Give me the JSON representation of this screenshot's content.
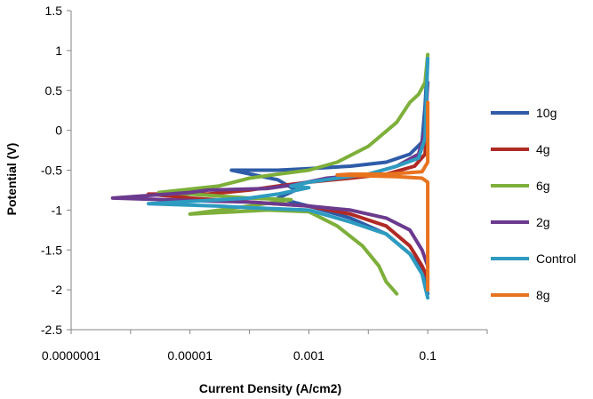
{
  "chart_data": {
    "type": "line",
    "title": "",
    "xlabel": "Current Density (A/cm2)",
    "ylabel": "Potential (V)",
    "x_scale": "log",
    "xlim": [
      1e-07,
      1
    ],
    "ylim": [
      -2.5,
      1.5
    ],
    "x_ticks": [
      {
        "value": 1e-07,
        "label": "0.0000001"
      },
      {
        "value": 1e-05,
        "label": "0.00001"
      },
      {
        "value": 0.001,
        "label": "0.001"
      },
      {
        "value": 0.1,
        "label": "0.1"
      }
    ],
    "y_ticks": [
      {
        "value": 1.5,
        "label": "1.5"
      },
      {
        "value": 1,
        "label": "1"
      },
      {
        "value": 0.5,
        "label": "0.5"
      },
      {
        "value": 0,
        "label": "0"
      },
      {
        "value": -0.5,
        "label": "-0.5"
      },
      {
        "value": -1,
        "label": "-1"
      },
      {
        "value": -1.5,
        "label": "-1.5"
      },
      {
        "value": -2,
        "label": "-2"
      },
      {
        "value": -2.5,
        "label": "-2.5"
      }
    ],
    "grid": false,
    "legend_position": "right",
    "series": [
      {
        "name": "10g",
        "color": "#2E5CA8",
        "points": [
          [
            0.1,
            0.9
          ],
          [
            0.09,
            0.3
          ],
          [
            0.08,
            -0.15
          ],
          [
            0.05,
            -0.3
          ],
          [
            0.02,
            -0.4
          ],
          [
            0.005,
            -0.45
          ],
          [
            0.001,
            -0.48
          ],
          [
            0.0003,
            -0.5
          ],
          [
            0.0001,
            -0.5
          ],
          [
            5e-05,
            -0.5
          ],
          [
            0.0003,
            -0.62
          ],
          [
            0.0006,
            -0.75
          ],
          [
            0.0003,
            -0.85
          ],
          [
            0.001,
            -0.95
          ],
          [
            0.005,
            -1.1
          ],
          [
            0.02,
            -1.3
          ],
          [
            0.05,
            -1.55
          ],
          [
            0.08,
            -1.75
          ],
          [
            0.1,
            -2.05
          ]
        ]
      },
      {
        "name": "4g",
        "color": "#B02A25",
        "points": [
          [
            0.1,
            0.2
          ],
          [
            0.09,
            -0.3
          ],
          [
            0.06,
            -0.45
          ],
          [
            0.02,
            -0.55
          ],
          [
            0.005,
            -0.6
          ],
          [
            0.001,
            -0.65
          ],
          [
            0.0003,
            -0.7
          ],
          [
            0.0001,
            -0.75
          ],
          [
            2e-05,
            -0.8
          ],
          [
            2e-06,
            -0.8
          ],
          [
            1e-05,
            -0.85
          ],
          [
            0.0001,
            -0.9
          ],
          [
            0.001,
            -0.95
          ],
          [
            0.005,
            -1.05
          ],
          [
            0.02,
            -1.2
          ],
          [
            0.05,
            -1.45
          ],
          [
            0.08,
            -1.7
          ],
          [
            0.1,
            -1.85
          ]
        ]
      },
      {
        "name": "6g",
        "color": "#7DAF3A",
        "points": [
          [
            0.1,
            0.95
          ],
          [
            0.09,
            0.6
          ],
          [
            0.07,
            0.45
          ],
          [
            0.05,
            0.35
          ],
          [
            0.03,
            0.1
          ],
          [
            0.01,
            -0.2
          ],
          [
            0.003,
            -0.4
          ],
          [
            0.001,
            -0.5
          ],
          [
            0.0003,
            -0.55
          ],
          [
            0.0001,
            -0.6
          ],
          [
            3e-05,
            -0.7
          ],
          [
            3e-06,
            -0.78
          ],
          [
            1e-05,
            -0.8
          ],
          [
            0.0001,
            -0.85
          ],
          [
            0.0005,
            -0.87
          ],
          [
            0.0001,
            -0.95
          ],
          [
            1e-05,
            -1.05
          ],
          [
            0.0002,
            -1.0
          ],
          [
            0.001,
            -1.02
          ],
          [
            0.003,
            -1.2
          ],
          [
            0.008,
            -1.45
          ],
          [
            0.015,
            -1.7
          ],
          [
            0.02,
            -1.9
          ],
          [
            0.03,
            -2.05
          ]
        ]
      },
      {
        "name": "2g",
        "color": "#6B3A8E",
        "points": [
          [
            0.1,
            0.6
          ],
          [
            0.09,
            0.0
          ],
          [
            0.07,
            -0.3
          ],
          [
            0.03,
            -0.45
          ],
          [
            0.01,
            -0.55
          ],
          [
            0.002,
            -0.6
          ],
          [
            0.0006,
            -0.68
          ],
          [
            0.0002,
            -0.73
          ],
          [
            2e-05,
            -0.75
          ],
          [
            1e-05,
            -0.78
          ],
          [
            5e-07,
            -0.85
          ],
          [
            1e-05,
            -0.88
          ],
          [
            0.0001,
            -0.9
          ],
          [
            0.001,
            -0.95
          ],
          [
            0.005,
            -1.0
          ],
          [
            0.02,
            -1.1
          ],
          [
            0.05,
            -1.25
          ],
          [
            0.08,
            -1.5
          ],
          [
            0.1,
            -1.7
          ]
        ]
      },
      {
        "name": "Control",
        "color": "#2E9BC0",
        "points": [
          [
            0.1,
            0.9
          ],
          [
            0.09,
            -0.1
          ],
          [
            0.07,
            -0.35
          ],
          [
            0.03,
            -0.45
          ],
          [
            0.01,
            -0.55
          ],
          [
            0.003,
            -0.6
          ],
          [
            0.001,
            -0.65
          ],
          [
            0.0005,
            -0.7
          ],
          [
            0.001,
            -0.72
          ],
          [
            0.0003,
            -0.8
          ],
          [
            0.0001,
            -0.85
          ],
          [
            2e-06,
            -0.92
          ],
          [
            3e-05,
            -0.95
          ],
          [
            0.0001,
            -0.97
          ],
          [
            0.001,
            -1.0
          ],
          [
            0.005,
            -1.15
          ],
          [
            0.02,
            -1.3
          ],
          [
            0.05,
            -1.55
          ],
          [
            0.08,
            -1.8
          ],
          [
            0.1,
            -2.1
          ]
        ]
      },
      {
        "name": "8g",
        "color": "#E8731F",
        "points": [
          [
            0.1,
            0.35
          ],
          [
            0.1,
            -0.4
          ],
          [
            0.08,
            -0.52
          ],
          [
            0.05,
            -0.53
          ],
          [
            0.02,
            -0.55
          ],
          [
            0.01,
            -0.55
          ],
          [
            0.005,
            -0.55
          ],
          [
            0.003,
            -0.56
          ],
          [
            0.008,
            -0.57
          ],
          [
            0.03,
            -0.58
          ],
          [
            0.08,
            -0.6
          ],
          [
            0.1,
            -0.65
          ],
          [
            0.1,
            -1.2
          ],
          [
            0.1,
            -1.7
          ],
          [
            0.1,
            -2.0
          ]
        ]
      }
    ]
  }
}
